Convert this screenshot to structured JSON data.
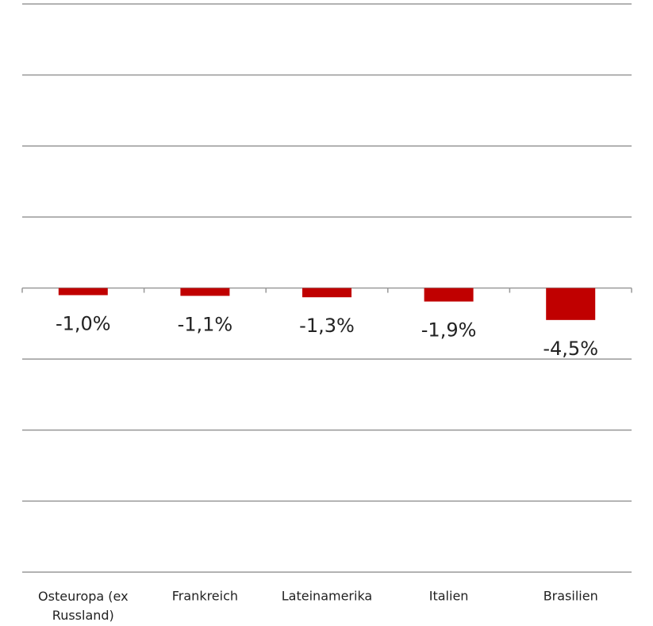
{
  "chart_data": {
    "type": "bar",
    "categories": [
      "Osteuropa (ex Russland)",
      "Frankreich",
      "Lateinamerika",
      "Italien",
      "Brasilien"
    ],
    "values": [
      -1.0,
      -1.1,
      -1.3,
      -1.9,
      -4.5
    ],
    "value_labels": [
      "-1,0%",
      "-1,1%",
      "-1,3%",
      "-1,9%",
      "-4,5%"
    ],
    "color": "#c00000",
    "ylim": [
      -40,
      40
    ],
    "yticks": [
      -40,
      -30,
      -20,
      -10,
      0,
      10,
      20,
      30,
      40
    ],
    "grid": true
  }
}
